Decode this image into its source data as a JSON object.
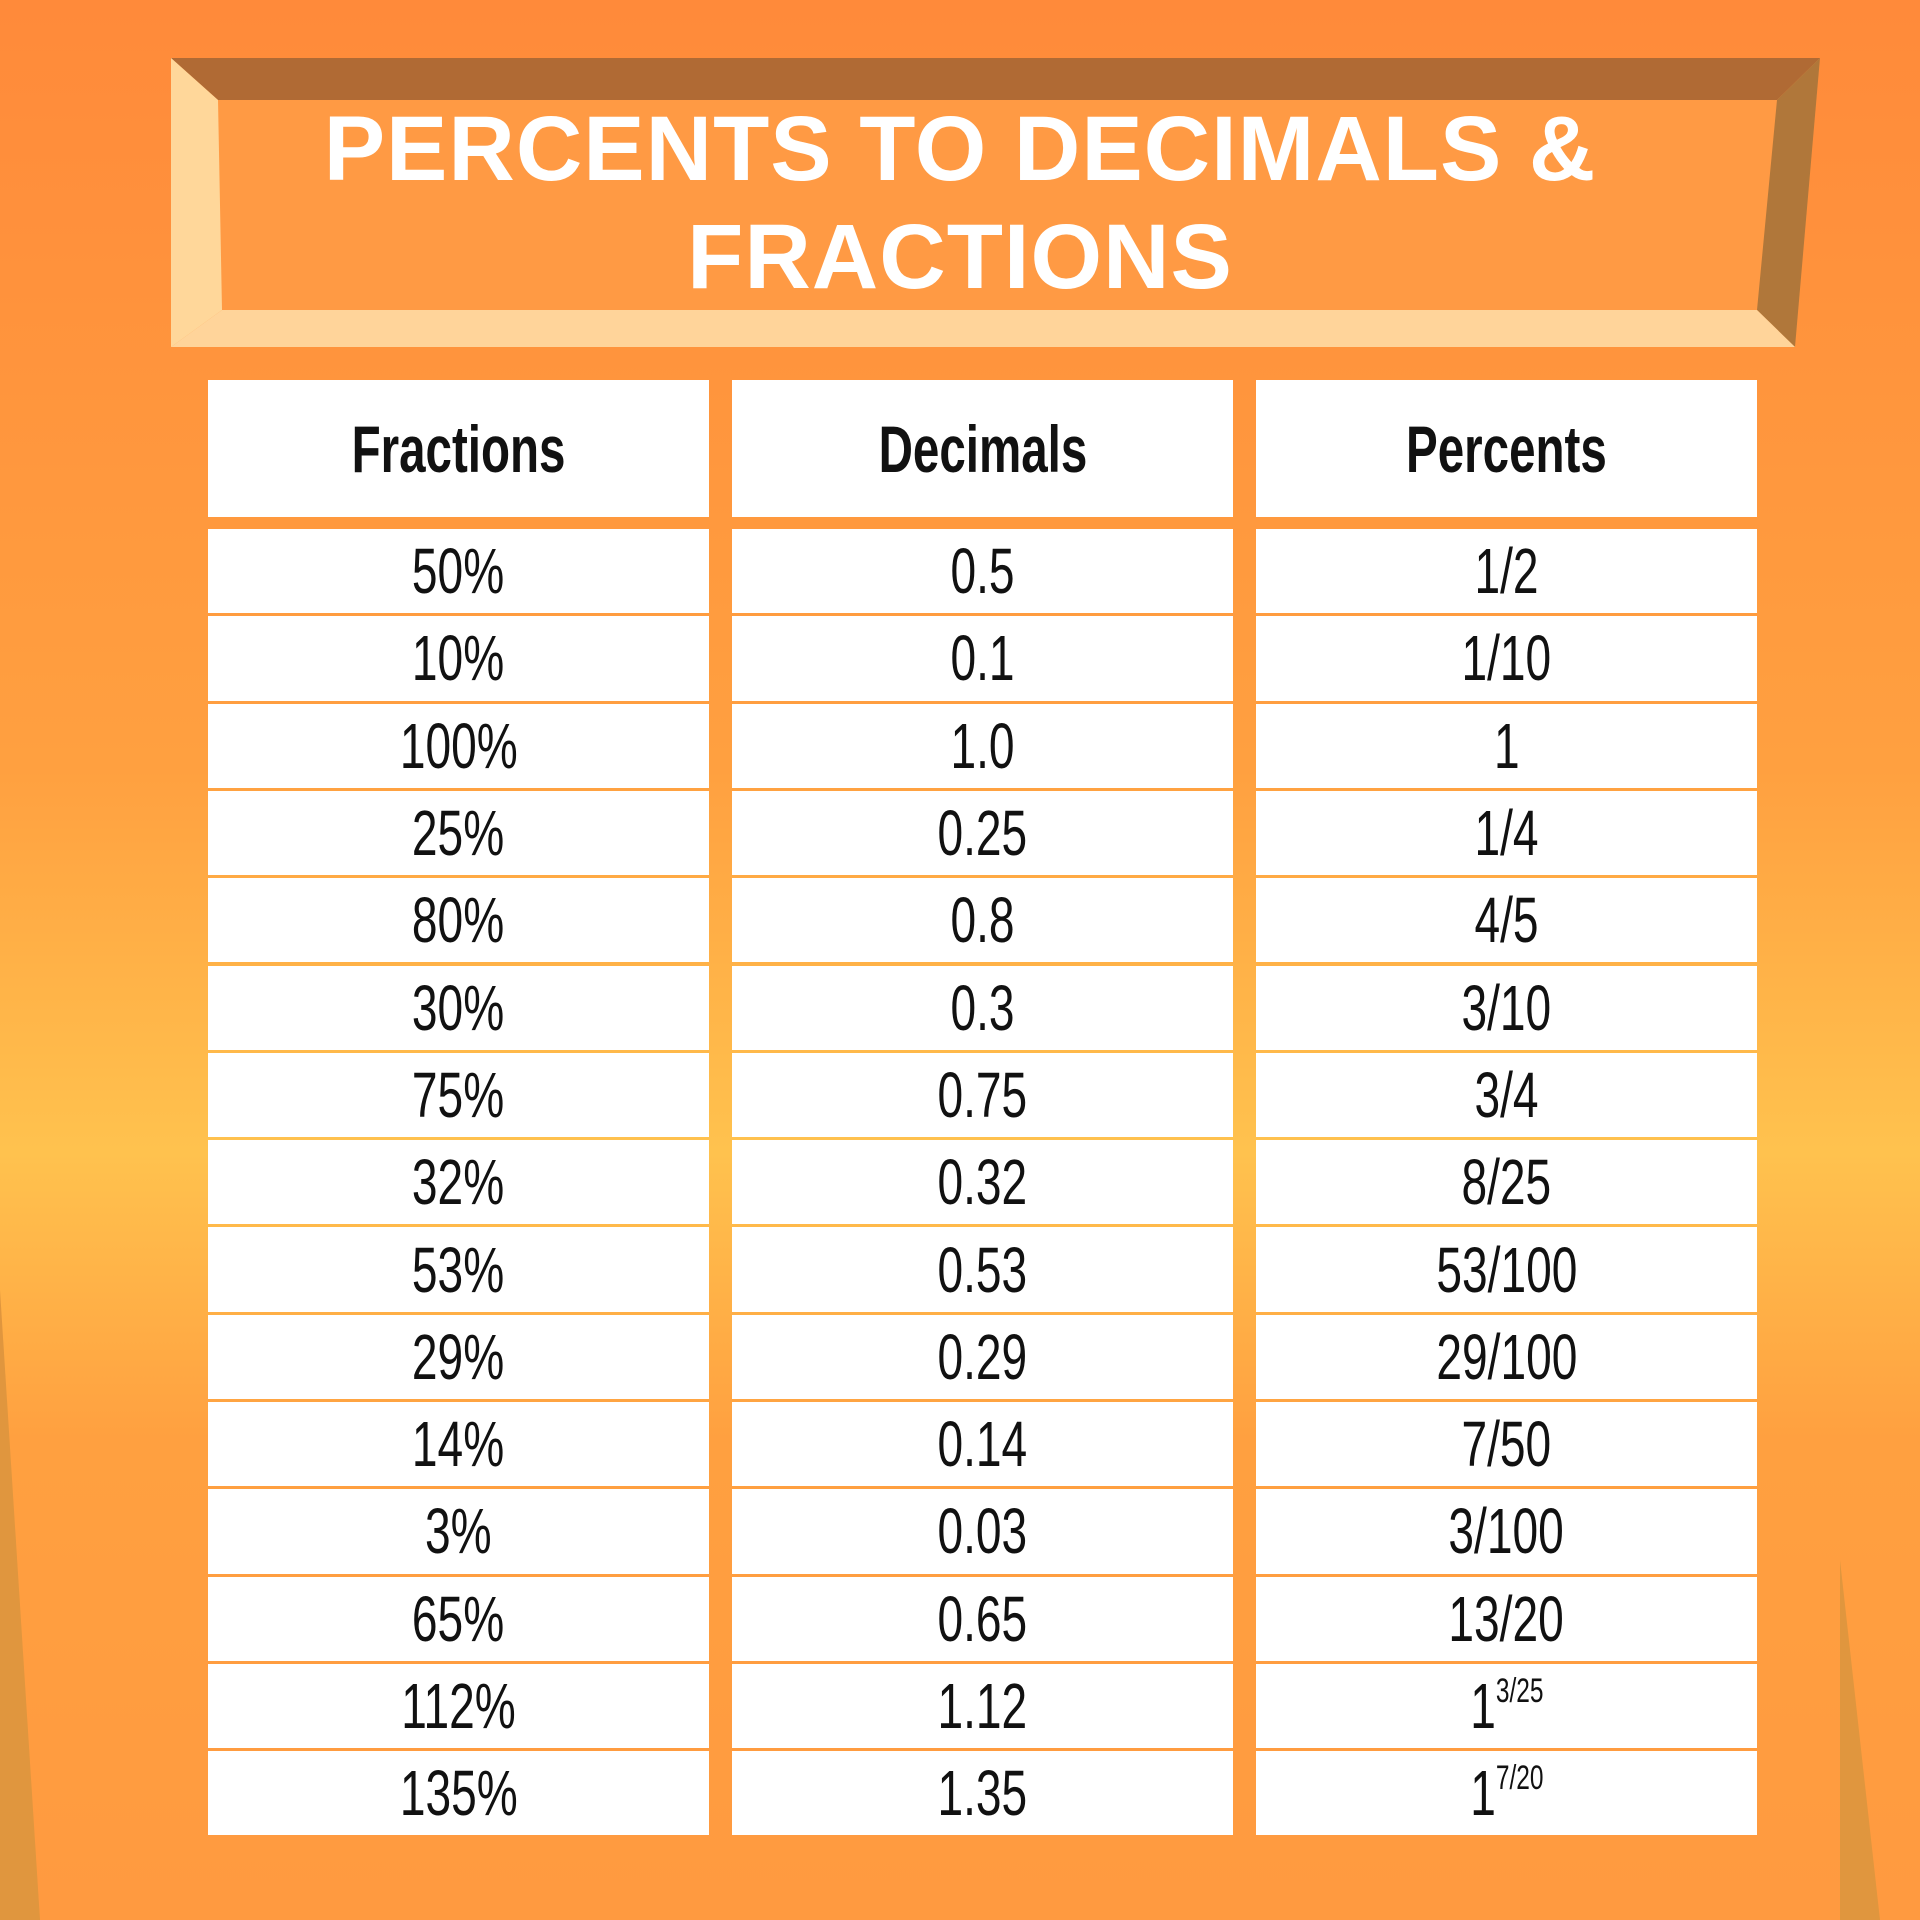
{
  "header": {
    "title": "PERCENTS TO DECIMALS & FRACTIONS"
  },
  "table": {
    "columns": [
      "Fractions",
      "Decimals",
      "Percents"
    ],
    "rows": [
      [
        "50%",
        "0.5",
        "1/2"
      ],
      [
        "10%",
        "0.1",
        "1/10"
      ],
      [
        "100%",
        "1.0",
        "1"
      ],
      [
        "25%",
        "0.25",
        "1/4"
      ],
      [
        "80%",
        "0.8",
        "4/5"
      ],
      [
        "30%",
        "0.3",
        "3/10"
      ],
      [
        "75%",
        "0.75",
        "3/4"
      ],
      [
        "32%",
        "0.32",
        "8/25"
      ],
      [
        "53%",
        "0.53",
        "53/100"
      ],
      [
        "29%",
        "0.29",
        "29/100"
      ],
      [
        "14%",
        "0.14",
        "7/50"
      ],
      [
        "3%",
        "0.03",
        "3/100"
      ],
      [
        "65%",
        "0.65",
        "13/20"
      ],
      [
        "112%",
        "1.12",
        {
          "whole": "1",
          "fraction": "3/25"
        }
      ],
      [
        "135%",
        "1.35",
        {
          "whole": "1",
          "fraction": "7/20"
        }
      ]
    ]
  }
}
